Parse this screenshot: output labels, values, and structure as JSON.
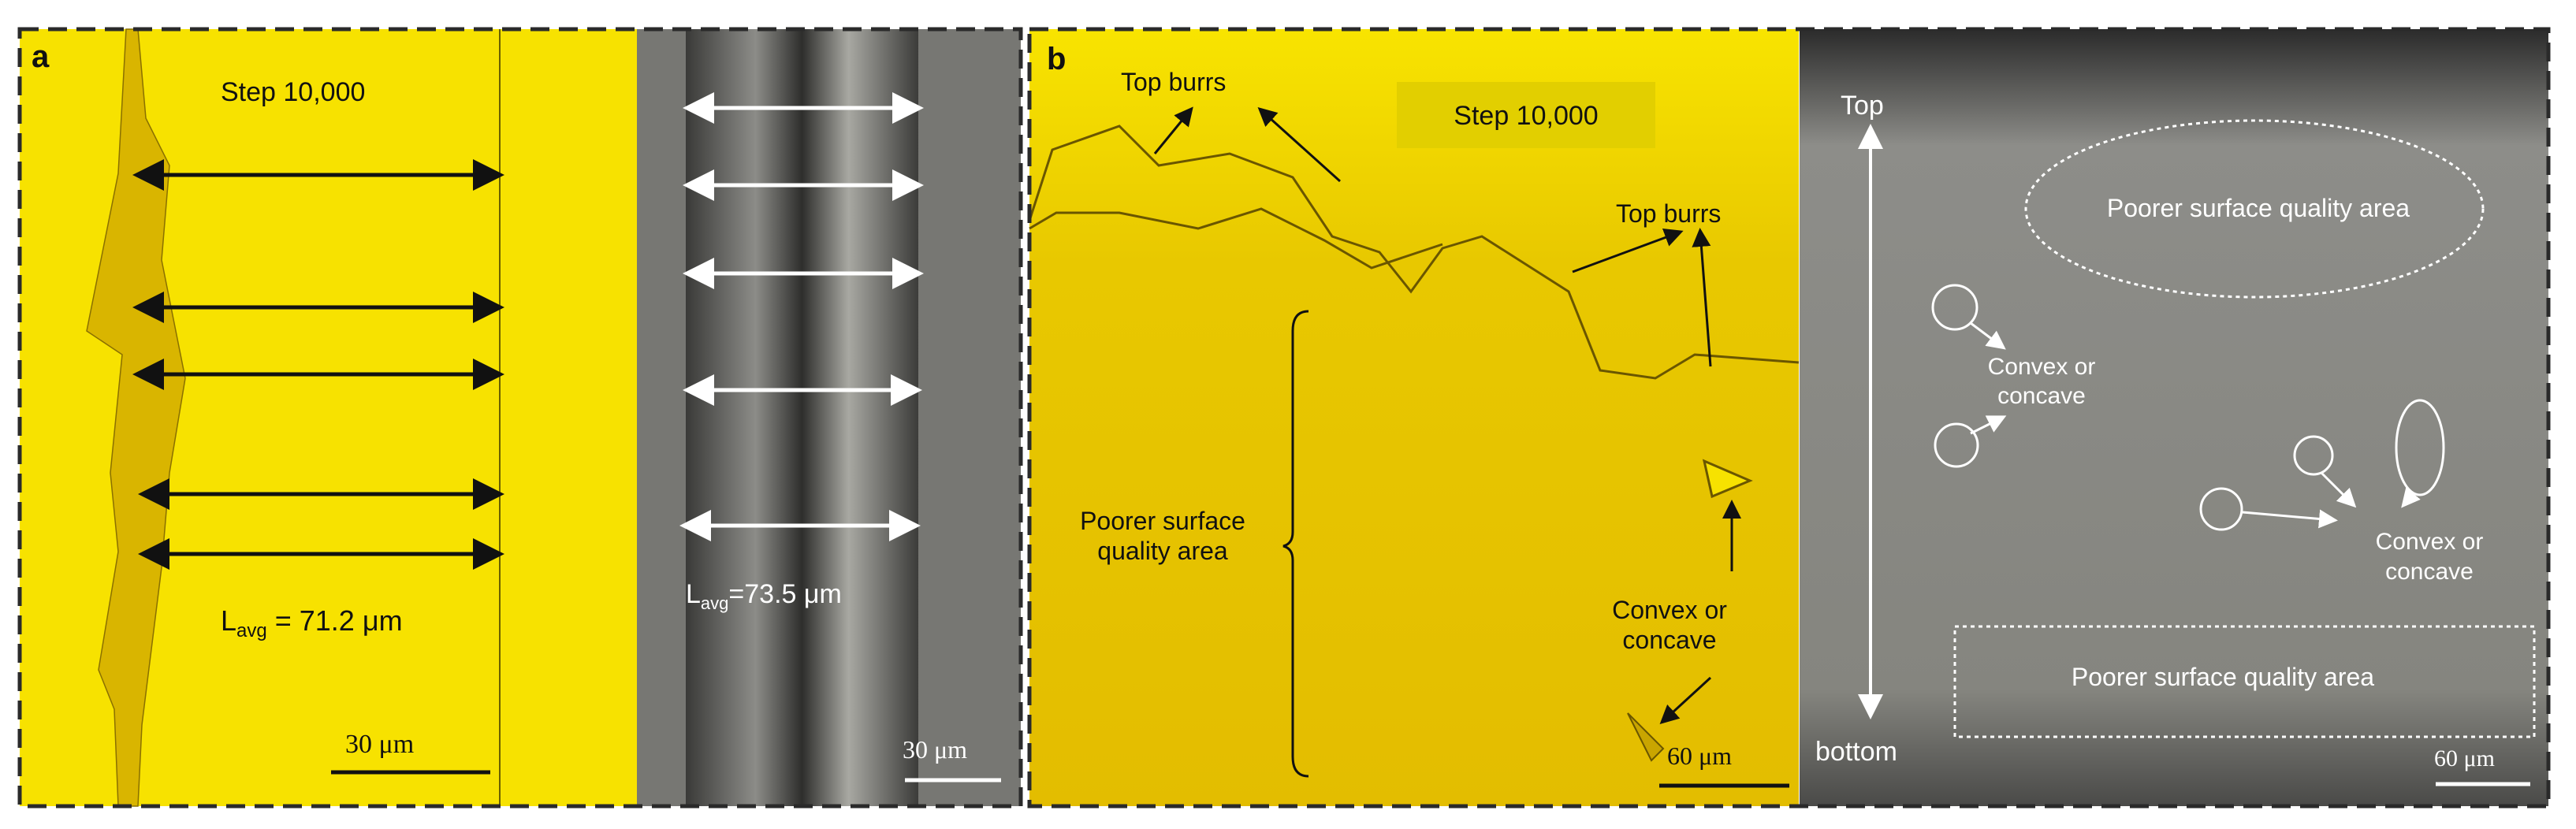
{
  "panel_a": {
    "label": "a",
    "sim_title": "Step 10,000",
    "sim_lavg_prefix": "L",
    "sim_lavg_sub": "avg",
    "sim_lavg_value": " = 71.2 μm",
    "sim_scale": "30 μm",
    "exp_lavg_prefix": "L",
    "exp_lavg_sub": "avg",
    "exp_lavg_value": "=73.5 μm",
    "exp_scale": "30 μm"
  },
  "panel_b": {
    "label": "b",
    "top_burrs_1": "Top burrs",
    "top_burrs_2": "Top burrs",
    "sim_title": "Step 10,000",
    "poorer_line1": "Poorer surface",
    "poorer_line2": "quality area",
    "convex_line1": "Convex or",
    "convex_line2": "concave",
    "sim_scale": "60 μm",
    "exp_top": "Top",
    "exp_bottom": "bottom",
    "exp_poorer_top": "Poorer surface quality area",
    "exp_poorer_bottom": "Poorer surface quality area",
    "exp_convex_left_1": "Convex or",
    "exp_convex_left_2": "concave",
    "exp_convex_right_1": "Convex or",
    "exp_convex_right_2": "concave",
    "exp_scale": "60 μm"
  },
  "colors": {
    "simulation_yellow": "#f7e200",
    "simulation_dark_yellow": "#e2bf00",
    "micrograph_gray": "#7a7a76",
    "border": "#2a2a2a"
  }
}
